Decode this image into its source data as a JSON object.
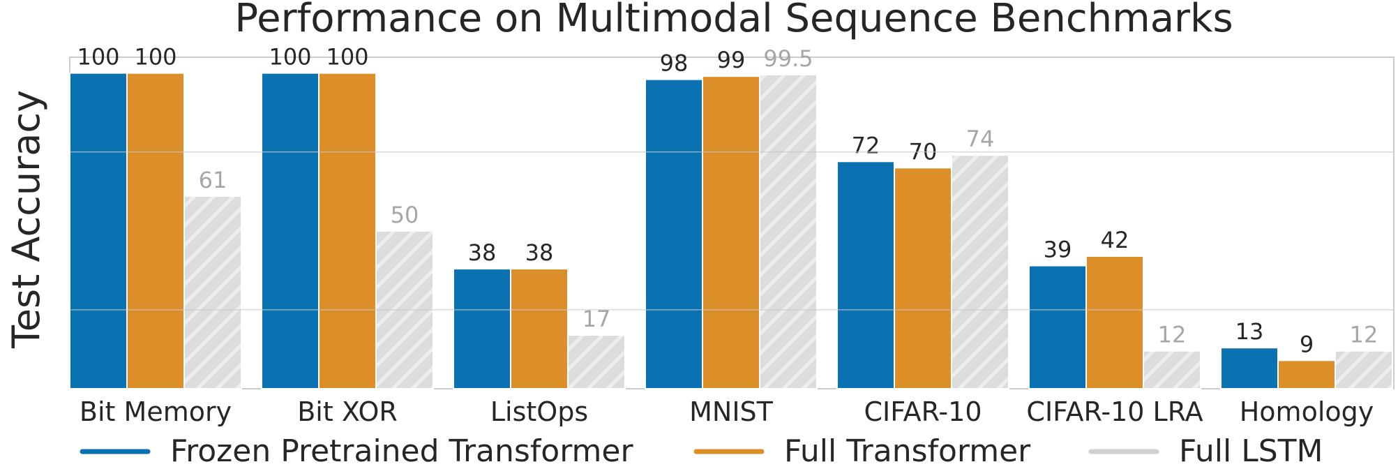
{
  "chart_data": {
    "type": "bar",
    "title": "Performance on Multimodal Sequence Benchmarks",
    "xlabel": "",
    "ylabel": "Test Accuracy",
    "ylim": [
      0,
      105
    ],
    "grid": true,
    "legend_position": "bottom",
    "categories": [
      "Bit Memory",
      "Bit XOR",
      "ListOps",
      "MNIST",
      "CIFAR-10",
      "CIFAR-10 LRA",
      "Homology"
    ],
    "series": [
      {
        "name": "Frozen Pretrained Transformer",
        "color": "#0a72b0",
        "values": [
          100,
          100,
          38,
          98,
          72,
          39,
          13
        ],
        "labels": [
          "100",
          "100",
          "38",
          "98",
          "72",
          "39",
          "13"
        ]
      },
      {
        "name": "Full Transformer",
        "color": "#dc8e29",
        "values": [
          100,
          100,
          38,
          99,
          70,
          42,
          9
        ],
        "labels": [
          "100",
          "100",
          "38",
          "99",
          "70",
          "42",
          "9"
        ]
      },
      {
        "name": "Full LSTM",
        "color": "#d4d4d4",
        "hatch": true,
        "values": [
          61,
          50,
          17,
          99.5,
          74,
          12,
          12
        ],
        "labels": [
          "61",
          "50",
          "17",
          "99.5",
          "74",
          "12",
          "12"
        ]
      }
    ]
  }
}
